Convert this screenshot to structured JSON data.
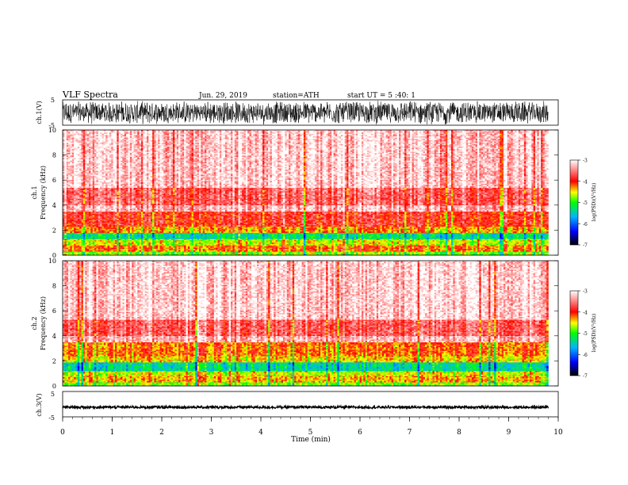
{
  "header": {
    "title": "VLF  Spectra",
    "date": "Jun. 29, 2019",
    "station": "station=ATH",
    "start": "start  UT  =    5  :40: 1"
  },
  "colors": {
    "scale": [
      "#000000",
      "#0000ff",
      "#00b4ff",
      "#00ff00",
      "#ffff00",
      "#ff0000",
      "#ffffff"
    ]
  },
  "chart_data": [
    {
      "type": "line",
      "name": "ch1-waveform",
      "ylabel": "ch.1(V)",
      "yticks": [
        "5",
        "-5"
      ],
      "ylim": [
        -5,
        5
      ],
      "description_of_signal": "dense noise",
      "amplitude_range": [
        -4.8,
        4.8
      ]
    },
    {
      "type": "heatmap",
      "name": "ch1-spectrogram",
      "ylabel_line1": "ch.1",
      "ylabel_line2": "Frequency  (kHz)",
      "yticks": [
        "0",
        "2",
        "4",
        "6",
        "8",
        "10"
      ],
      "ylim": [
        0,
        10
      ],
      "x_range_min": [
        0,
        9.8
      ],
      "bands": [
        {
          "f": [
            0,
            0.3
          ],
          "level": 0.55
        },
        {
          "f": [
            0.3,
            0.8
          ],
          "level": 0.7
        },
        {
          "f": [
            0.8,
            1.3
          ],
          "level": 0.6
        },
        {
          "f": [
            1.3,
            1.8
          ],
          "level": 0.42
        },
        {
          "f": [
            1.8,
            2.3
          ],
          "level": 0.68
        },
        {
          "f": [
            2.3,
            3.5
          ],
          "level": 0.78
        },
        {
          "f": [
            3.5,
            4.0
          ],
          "level": 0.93
        },
        {
          "f": [
            4.0,
            5.4
          ],
          "level": 0.84
        },
        {
          "f": [
            5.4,
            10.0
          ],
          "level": 0.95
        }
      ],
      "colorbar": {
        "label": "log(PSD)(V²/Hz)",
        "ticks": [
          "-3",
          "-4",
          "-5",
          "-6",
          "-7"
        ],
        "range": [
          -7,
          -3
        ]
      }
    },
    {
      "type": "heatmap",
      "name": "ch2-spectrogram",
      "ylabel_line1": "ch.2",
      "ylabel_line2": "Frequency  (kHz)",
      "yticks": [
        "0",
        "2",
        "4",
        "6",
        "8",
        "10"
      ],
      "ylim": [
        0,
        10
      ],
      "x_range_min": [
        0,
        9.8
      ],
      "bands": [
        {
          "f": [
            0,
            0.3
          ],
          "level": 0.55
        },
        {
          "f": [
            0.3,
            0.8
          ],
          "level": 0.66
        },
        {
          "f": [
            0.8,
            1.2
          ],
          "level": 0.6
        },
        {
          "f": [
            1.2,
            1.9
          ],
          "level": 0.4
        },
        {
          "f": [
            1.9,
            2.4
          ],
          "level": 0.64
        },
        {
          "f": [
            2.4,
            3.5
          ],
          "level": 0.7
        },
        {
          "f": [
            3.5,
            4.0
          ],
          "level": 0.92
        },
        {
          "f": [
            4.0,
            5.3
          ],
          "level": 0.83
        },
        {
          "f": [
            5.3,
            10.0
          ],
          "level": 0.95
        }
      ],
      "colorbar": {
        "label": "log(PSD)(V²/Hz)",
        "ticks": [
          "-3",
          "-4",
          "-5",
          "-6",
          "-7"
        ],
        "range": [
          -7,
          -3
        ]
      }
    },
    {
      "type": "line",
      "name": "ch3-waveform",
      "ylabel": "ch.3(V)",
      "yticks": [
        "5",
        "-5"
      ],
      "ylim": [
        -5,
        5
      ],
      "baseline": -1.2,
      "xlabel": "Time  (min)",
      "xticks": [
        "0",
        "1",
        "2",
        "3",
        "4",
        "5",
        "6",
        "7",
        "8",
        "9",
        "10"
      ],
      "xlim": [
        0,
        10
      ]
    }
  ]
}
